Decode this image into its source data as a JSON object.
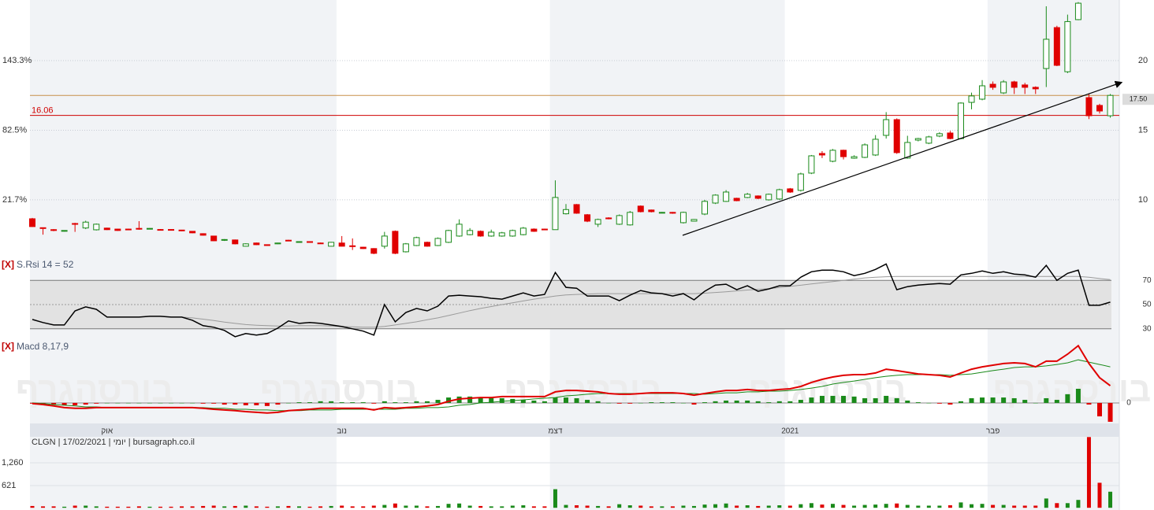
{
  "watermark": "בורסהגרף",
  "chart_data": [
    {
      "type": "candlestick",
      "categories": [
        null,
        null,
        null,
        null,
        null,
        null,
        null,
        "אוק",
        null,
        null,
        null,
        null,
        null,
        null,
        null,
        null,
        null,
        null,
        null,
        null,
        null,
        null,
        null,
        null,
        null,
        null,
        null,
        null,
        null,
        "נוב",
        null,
        null,
        null,
        null,
        null,
        null,
        null,
        null,
        null,
        null,
        null,
        null,
        null,
        null,
        null,
        null,
        null,
        null,
        null,
        "דצמ",
        null,
        null,
        null,
        null,
        null,
        null,
        null,
        null,
        null,
        null,
        null,
        null,
        null,
        null,
        null,
        null,
        null,
        null,
        null,
        null,
        null,
        "2021",
        null,
        null,
        null,
        null,
        null,
        null,
        null,
        null,
        null,
        null,
        null,
        null,
        null,
        null,
        null,
        null,
        null,
        null,
        "פבר",
        null,
        null,
        null,
        null,
        null,
        null,
        null,
        null,
        null,
        null,
        null
      ],
      "open": [
        8.64,
        8.0,
        7.86,
        7.75,
        8.3,
        7.98,
        7.85,
        7.97,
        7.9,
        7.9,
        7.95,
        7.9,
        7.87,
        7.87,
        7.83,
        7.74,
        7.57,
        7.4,
        7.1,
        7.12,
        6.67,
        6.9,
        6.78,
        6.84,
        7.1,
        6.96,
        7.0,
        6.9,
        6.67,
        6.9,
        6.7,
        6.6,
        6.5,
        6.67,
        7.74,
        6.27,
        6.72,
        6.95,
        6.72,
        6.95,
        7.4,
        7.5,
        7.74,
        7.4,
        7.4,
        7.4,
        7.5,
        7.9,
        7.9,
        7.86,
        9.0,
        9.66,
        8.93,
        8.25,
        8.7,
        8.25,
        8.2,
        9.55,
        9.27,
        9.08,
        9.1,
        8.36,
        8.47,
        8.98,
        9.77,
        9.89,
        10.11,
        10.17,
        10.28,
        10.0,
        10.06,
        10.79,
        10.68,
        11.92,
        13.33,
        12.77,
        13.56,
        12.99,
        13.05,
        13.22,
        14.63,
        15.76,
        13.0,
        14.29,
        14.07,
        14.58,
        14.8,
        14.4,
        17.0,
        17.23,
        18.3,
        17.68,
        18.47,
        18.25,
        18.08,
        19.43,
        22.37,
        19.2,
        22.94,
        17.34,
        16.78,
        16.04
      ],
      "high": [
        8.7,
        8.02,
        7.9,
        7.82,
        8.35,
        8.5,
        8.3,
        8.0,
        7.92,
        7.93,
        8.47,
        7.97,
        7.9,
        7.89,
        7.85,
        7.76,
        7.6,
        7.42,
        7.18,
        7.15,
        6.88,
        6.93,
        6.8,
        6.92,
        7.13,
        7.03,
        7.02,
        6.93,
        6.98,
        7.4,
        7.23,
        6.63,
        6.53,
        7.7,
        7.8,
        6.9,
        7.35,
        7.0,
        7.3,
        7.85,
        8.6,
        7.97,
        7.8,
        7.86,
        7.7,
        7.86,
        8.05,
        7.95,
        7.93,
        11.4,
        9.7,
        9.7,
        8.98,
        8.65,
        8.75,
        8.95,
        9.2,
        9.6,
        9.3,
        9.13,
        9.13,
        9.15,
        8.62,
        10.0,
        10.4,
        10.7,
        10.15,
        10.5,
        10.32,
        10.45,
        10.8,
        10.85,
        11.95,
        13.22,
        13.5,
        13.65,
        13.6,
        13.2,
        14.05,
        14.65,
        16.3,
        15.85,
        14.6,
        14.45,
        14.6,
        14.85,
        14.95,
        17.0,
        17.7,
        18.6,
        18.5,
        18.6,
        18.55,
        18.4,
        18.15,
        23.9,
        22.5,
        23.3,
        24.2,
        17.6,
        16.9,
        17.6
      ],
      "low": [
        8.05,
        7.5,
        7.75,
        7.72,
        7.7,
        7.9,
        7.8,
        7.83,
        7.77,
        7.82,
        7.85,
        7.88,
        7.83,
        7.8,
        7.75,
        7.6,
        7.43,
        7.03,
        7.05,
        6.8,
        6.65,
        6.75,
        6.7,
        6.82,
        7.03,
        6.94,
        6.93,
        6.85,
        6.65,
        6.65,
        6.4,
        6.47,
        6.1,
        6.5,
        6.1,
        6.22,
        6.68,
        6.63,
        6.68,
        6.9,
        7.35,
        7.45,
        7.35,
        7.35,
        7.35,
        7.35,
        7.45,
        7.7,
        7.85,
        7.86,
        8.95,
        9.0,
        8.4,
        8.05,
        8.6,
        8.2,
        8.15,
        9.1,
        9.1,
        9.05,
        9.0,
        8.3,
        8.44,
        8.9,
        9.7,
        9.85,
        9.9,
        10.12,
        10.05,
        9.95,
        10.0,
        10.5,
        10.6,
        11.85,
        13.0,
        12.7,
        12.9,
        12.95,
        13.0,
        13.15,
        14.4,
        13.3,
        12.95,
        14.2,
        14.0,
        14.5,
        14.35,
        14.35,
        16.5,
        17.15,
        17.9,
        17.6,
        17.6,
        17.6,
        17.6,
        18.1,
        19.6,
        19.1,
        22.9,
        15.8,
        16.2,
        15.9
      ],
      "close": [
        8.08,
        7.95,
        7.8,
        7.8,
        8.25,
        8.4,
        8.25,
        7.86,
        7.8,
        7.85,
        7.9,
        7.95,
        7.85,
        7.83,
        7.78,
        7.63,
        7.46,
        7.06,
        7.15,
        6.84,
        6.84,
        6.78,
        6.72,
        6.9,
        7.06,
        7.0,
        6.96,
        6.88,
        6.95,
        6.67,
        6.65,
        6.5,
        6.16,
        7.4,
        6.16,
        6.84,
        7.29,
        6.67,
        7.23,
        7.8,
        8.25,
        7.8,
        7.4,
        7.68,
        7.63,
        7.8,
        7.97,
        7.74,
        7.88,
        10.17,
        9.3,
        9.04,
        8.47,
        8.59,
        8.64,
        8.87,
        9.1,
        9.15,
        9.15,
        9.1,
        9.04,
        9.1,
        8.59,
        9.89,
        10.34,
        10.56,
        9.94,
        10.4,
        10.11,
        10.4,
        10.73,
        10.56,
        11.86,
        13.16,
        13.22,
        13.56,
        13.1,
        13.1,
        13.95,
        14.35,
        15.76,
        13.39,
        14.12,
        14.4,
        14.52,
        14.75,
        14.4,
        16.95,
        17.46,
        18.19,
        18.08,
        18.47,
        18.08,
        18.08,
        17.97,
        21.53,
        19.66,
        22.8,
        24.12,
        16.04,
        16.38,
        17.5
      ],
      "up_color": "#1a8a1a",
      "down_color": "#e00000",
      "ylim": [
        5.7,
        24.35
      ],
      "yticks": [
        10,
        15,
        20
      ],
      "y2lim": [
        -30.66,
        196.23
      ],
      "y2ticks": [
        {
          "value": 21.7,
          "label": "21.7%"
        },
        {
          "value": 82.5,
          "label": "82.5%"
        },
        {
          "value": 143.3,
          "label": "143.3%"
        }
      ],
      "grid": true,
      "lines": [
        {
          "value": 17.5,
          "label": "17.50",
          "color": "#c8904a",
          "side": "right"
        },
        {
          "value": 16.06,
          "label": "16.06",
          "color": "#d00000",
          "side": "left"
        }
      ]
    },
    {
      "type": "line",
      "close_button": "[X]",
      "title": "S.Rsi 14 = 52",
      "ylim": [
        13,
        87
      ],
      "yticks": [
        30,
        50,
        70
      ],
      "band": [
        30,
        70
      ],
      "series": [
        {
          "color": "#000000",
          "values": [
            37.7,
            35.2,
            33.2,
            33.2,
            44.8,
            48.1,
            46.1,
            39.7,
            39.7,
            39.7,
            39.7,
            40.3,
            40.3,
            39.7,
            39.7,
            37.1,
            32.6,
            31.3,
            28.7,
            23.5,
            26.1,
            24.8,
            26.1,
            30.6,
            36.5,
            34.5,
            35.2,
            34.5,
            33.2,
            31.9,
            30.0,
            28.1,
            24.8,
            50,
            35.8,
            43.5,
            46.8,
            44.8,
            48.7,
            57.1,
            57.7,
            57.1,
            56.5,
            55.2,
            54.5,
            57.1,
            59.7,
            57.1,
            58.4,
            76.5,
            64.2,
            63.5,
            57.1,
            57.1,
            57.1,
            53.2,
            57.7,
            61.6,
            59.7,
            59.0,
            57.1,
            59.0,
            53.9,
            61.0,
            66.1,
            66.8,
            62.3,
            65.5,
            61.0,
            62.9,
            65.5,
            65.5,
            72.6,
            77.1,
            78.4,
            78.4,
            77.1,
            73.9,
            75.8,
            79.0,
            83.5,
            62.3,
            64.8,
            66.1,
            66.8,
            67.4,
            66.8,
            74.5,
            75.8,
            77.7,
            75.8,
            77.1,
            75.2,
            74.5,
            72.6,
            82.3,
            70.0,
            75.8,
            78.4,
            49.4,
            49.4,
            52
          ]
        },
        {
          "color": "#9a9a9a",
          "values": [
            null,
            null,
            null,
            null,
            null,
            null,
            null,
            null,
            null,
            null,
            null,
            null,
            null,
            null,
            39.7,
            39.0,
            38.0,
            36.8,
            35.5,
            34.5,
            33.5,
            33.0,
            32.6,
            32.3,
            32.3,
            32.6,
            32.6,
            32.6,
            32.3,
            31.9,
            31.6,
            31.3,
            31.3,
            32.0,
            33.2,
            34.5,
            35.8,
            37.5,
            39.0,
            41.0,
            43.0,
            45.0,
            46.8,
            48.4,
            50.0,
            51.5,
            53.0,
            54.5,
            55.8,
            57.1,
            58.0,
            58.4,
            58.7,
            59.0,
            59.0,
            59.0,
            59.0,
            59.0,
            59.0,
            59.0,
            59.0,
            59.0,
            59.0,
            59.4,
            60.0,
            60.6,
            61.3,
            62.0,
            62.6,
            63.2,
            64.0,
            65.0,
            66.0,
            67.0,
            68.0,
            69.0,
            70.0,
            71.0,
            72.0,
            72.6,
            73.0,
            73.2,
            73.2,
            73.2,
            73.2,
            73.2,
            73.2,
            73.2,
            73.2,
            73.2,
            73.2,
            73.2,
            73.2,
            73.2,
            73.2,
            73.2,
            73.2,
            73.2,
            73.2,
            72.6,
            71.5,
            70.6
          ]
        }
      ]
    },
    {
      "type": "macd",
      "close_button": "[X]",
      "title": "Macd 8,17,9",
      "ylim": [
        -0.87,
        2.67
      ],
      "yticks": [
        0
      ],
      "up_color": "#1a8a1a",
      "down_color": "#e00000",
      "series": [
        {
          "color": "#e00000",
          "values": [
            -0.03,
            -0.07,
            -0.13,
            -0.2,
            -0.23,
            -0.23,
            -0.2,
            -0.2,
            -0.2,
            -0.2,
            -0.2,
            -0.2,
            -0.2,
            -0.2,
            -0.2,
            -0.2,
            -0.23,
            -0.27,
            -0.3,
            -0.33,
            -0.37,
            -0.4,
            -0.43,
            -0.4,
            -0.33,
            -0.3,
            -0.27,
            -0.23,
            -0.23,
            -0.23,
            -0.23,
            -0.23,
            -0.3,
            -0.2,
            -0.23,
            -0.2,
            -0.17,
            -0.13,
            -0.07,
            0.07,
            0.17,
            0.2,
            0.23,
            0.23,
            0.27,
            0.27,
            0.27,
            0.27,
            0.27,
            0.47,
            0.53,
            0.53,
            0.5,
            0.47,
            0.4,
            0.37,
            0.37,
            0.4,
            0.43,
            0.43,
            0.43,
            0.4,
            0.33,
            0.4,
            0.47,
            0.53,
            0.53,
            0.57,
            0.53,
            0.53,
            0.57,
            0.6,
            0.7,
            0.87,
            1.0,
            1.1,
            1.17,
            1.2,
            1.2,
            1.27,
            1.43,
            1.37,
            1.3,
            1.23,
            1.2,
            1.17,
            1.1,
            1.27,
            1.43,
            1.53,
            1.6,
            1.67,
            1.7,
            1.67,
            1.53,
            1.77,
            1.77,
            2.07,
            2.43,
            1.67,
            1.07,
            0.73
          ]
        },
        {
          "color": "#1a8a1a",
          "values": [
            0,
            -0.03,
            -0.07,
            -0.1,
            -0.13,
            -0.17,
            -0.17,
            -0.2,
            -0.2,
            -0.2,
            -0.2,
            -0.2,
            -0.2,
            -0.2,
            -0.2,
            -0.2,
            -0.2,
            -0.23,
            -0.23,
            -0.27,
            -0.27,
            -0.3,
            -0.3,
            -0.33,
            -0.33,
            -0.33,
            -0.3,
            -0.3,
            -0.3,
            -0.27,
            -0.27,
            -0.27,
            -0.27,
            -0.27,
            -0.27,
            -0.23,
            -0.23,
            -0.2,
            -0.2,
            -0.17,
            -0.1,
            -0.07,
            0,
            0.03,
            0.07,
            0.1,
            0.13,
            0.17,
            0.2,
            0.23,
            0.3,
            0.33,
            0.37,
            0.4,
            0.4,
            0.4,
            0.4,
            0.4,
            0.4,
            0.4,
            0.4,
            0.4,
            0.4,
            0.37,
            0.4,
            0.43,
            0.43,
            0.47,
            0.47,
            0.5,
            0.5,
            0.53,
            0.57,
            0.63,
            0.7,
            0.8,
            0.87,
            0.93,
            1.0,
            1.07,
            1.13,
            1.17,
            1.2,
            1.2,
            1.2,
            1.2,
            1.17,
            1.2,
            1.23,
            1.3,
            1.37,
            1.43,
            1.5,
            1.53,
            1.53,
            1.57,
            1.63,
            1.7,
            1.83,
            1.73,
            1.63,
            1.53
          ]
        }
      ],
      "histogram": [
        -0.03,
        -0.03,
        -0.07,
        -0.1,
        -0.1,
        -0.07,
        -0.03,
        0,
        0,
        0,
        0,
        0,
        0,
        0,
        0,
        0,
        -0.03,
        -0.03,
        -0.07,
        -0.07,
        -0.1,
        -0.1,
        -0.13,
        -0.07,
        0,
        0.03,
        0.03,
        0.07,
        0.07,
        0.03,
        0.03,
        0.03,
        -0.03,
        0.07,
        0.03,
        0.03,
        0.07,
        0.07,
        0.13,
        0.23,
        0.27,
        0.27,
        0.23,
        0.2,
        0.2,
        0.17,
        0.13,
        0.1,
        0.07,
        0.23,
        0.23,
        0.2,
        0.13,
        0.07,
        0,
        -0.03,
        -0.03,
        0,
        0.03,
        0.03,
        0.03,
        0,
        -0.07,
        0.03,
        0.07,
        0.1,
        0.1,
        0.1,
        0.07,
        0.03,
        0.07,
        0.07,
        0.13,
        0.23,
        0.3,
        0.3,
        0.3,
        0.27,
        0.2,
        0.2,
        0.3,
        0.2,
        0.1,
        0.03,
        0,
        -0.03,
        -0.07,
        0.07,
        0.2,
        0.23,
        0.23,
        0.23,
        0.2,
        0.13,
        0,
        0.2,
        0.13,
        0.37,
        0.6,
        -0.07,
        -0.57,
        -0.8
      ]
    },
    {
      "type": "bar",
      "title": "CLGN | 17/02/2021 | יומי | bursagraph.co.il",
      "ylim": [
        -62,
        1987
      ],
      "yticks": [
        621,
        {
          "value": 1260,
          "label": "1,260"
        }
      ],
      "grid": true,
      "values": [
        50,
        40,
        40,
        30,
        60,
        60,
        40,
        30,
        30,
        30,
        40,
        30,
        30,
        30,
        40,
        40,
        50,
        60,
        40,
        50,
        60,
        40,
        30,
        40,
        50,
        40,
        30,
        40,
        50,
        60,
        40,
        40,
        60,
        80,
        120,
        60,
        60,
        40,
        50,
        110,
        120,
        60,
        50,
        40,
        40,
        60,
        70,
        40,
        40,
        520,
        80,
        70,
        60,
        50,
        40,
        100,
        70,
        60,
        40,
        40,
        40,
        60,
        50,
        90,
        100,
        120,
        60,
        70,
        50,
        60,
        70,
        60,
        100,
        130,
        90,
        110,
        80,
        60,
        80,
        90,
        110,
        120,
        80,
        60,
        60,
        60,
        70,
        150,
        100,
        110,
        80,
        80,
        60,
        60,
        60,
        260,
        130,
        130,
        220,
        1980,
        700,
        450
      ]
    }
  ]
}
